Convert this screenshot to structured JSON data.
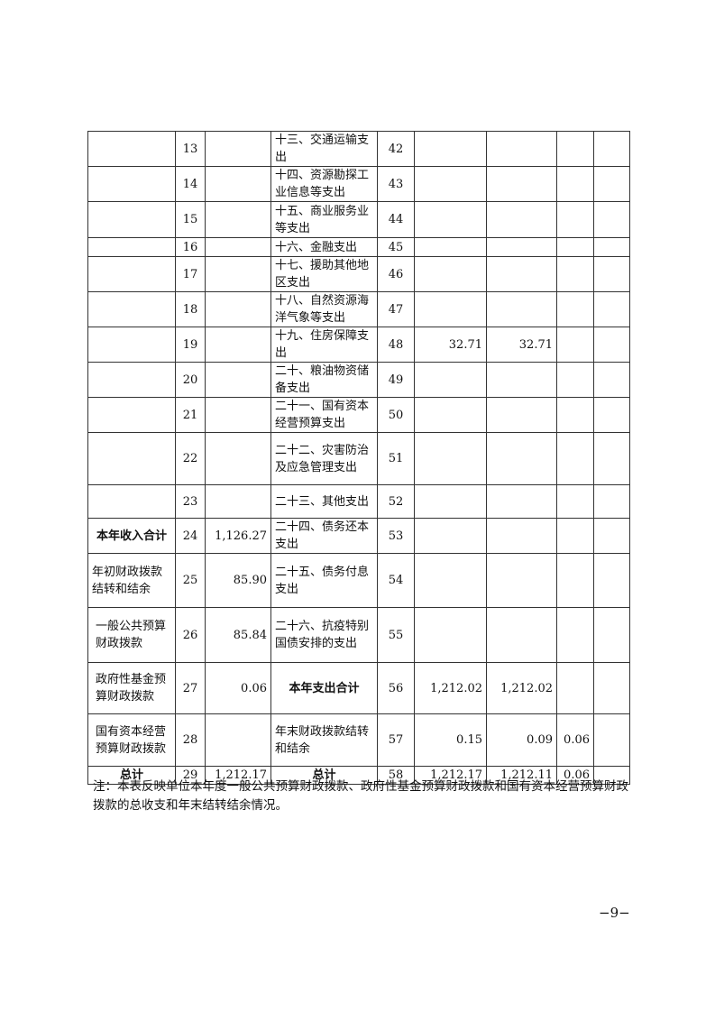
{
  "table": {
    "rows": [
      {
        "left": "",
        "ln": "13",
        "lv": "",
        "right": "十三、交通运输支出",
        "rn": "42",
        "v1": "",
        "v2": "",
        "v3": "",
        "v4": ""
      },
      {
        "left": "",
        "ln": "14",
        "lv": "",
        "right": "十四、资源勘探工业信息等支出",
        "rn": "43",
        "v1": "",
        "v2": "",
        "v3": "",
        "v4": ""
      },
      {
        "left": "",
        "ln": "15",
        "lv": "",
        "right": "十五、商业服务业等支出",
        "rn": "44",
        "v1": "",
        "v2": "",
        "v3": "",
        "v4": ""
      },
      {
        "left": "",
        "ln": "16",
        "lv": "",
        "right": "十六、金融支出",
        "rn": "45",
        "v1": "",
        "v2": "",
        "v3": "",
        "v4": ""
      },
      {
        "left": "",
        "ln": "17",
        "lv": "",
        "right": "十七、援助其他地区支出",
        "rn": "46",
        "v1": "",
        "v2": "",
        "v3": "",
        "v4": ""
      },
      {
        "left": "",
        "ln": "18",
        "lv": "",
        "right": "十八、自然资源海洋气象等支出",
        "rn": "47",
        "v1": "",
        "v2": "",
        "v3": "",
        "v4": ""
      },
      {
        "left": "",
        "ln": "19",
        "lv": "",
        "right": "十九、住房保障支出",
        "rn": "48",
        "v1": "32.71",
        "v2": "32.71",
        "v3": "",
        "v4": ""
      },
      {
        "left": "",
        "ln": "20",
        "lv": "",
        "right": "二十、粮油物资储备支出",
        "rn": "49",
        "v1": "",
        "v2": "",
        "v3": "",
        "v4": ""
      },
      {
        "left": "",
        "ln": "21",
        "lv": "",
        "right": "二十一、国有资本经营预算支出",
        "rn": "50",
        "v1": "",
        "v2": "",
        "v3": "",
        "v4": ""
      },
      {
        "left": "",
        "ln": "22",
        "lv": "",
        "right": "二十二、灾害防治及应急管理支出",
        "rn": "51",
        "v1": "",
        "v2": "",
        "v3": "",
        "v4": ""
      },
      {
        "left": "",
        "ln": "23",
        "lv": "",
        "right": "二十三、其他支出",
        "rn": "52",
        "v1": "",
        "v2": "",
        "v3": "",
        "v4": ""
      },
      {
        "left": "本年收入合计",
        "ln": "24",
        "lv": "1,126.27",
        "right": "二十四、债务还本支出",
        "rn": "53",
        "v1": "",
        "v2": "",
        "v3": "",
        "v4": ""
      },
      {
        "left": "年初财政拨款结转和结余",
        "ln": "25",
        "lv": "85.90",
        "right": "二十五、债务付息支出",
        "rn": "54",
        "v1": "",
        "v2": "",
        "v3": "",
        "v4": ""
      },
      {
        "left": "一般公共预算财政拨款",
        "ln": "26",
        "lv": "85.84",
        "right": "二十六、抗疫特别国债安排的支出",
        "rn": "55",
        "v1": "",
        "v2": "",
        "v3": "",
        "v4": ""
      },
      {
        "left": "政府性基金预算财政拨款",
        "ln": "27",
        "lv": "0.06",
        "right": "本年支出合计",
        "rn": "56",
        "v1": "1,212.02",
        "v2": "1,212.02",
        "v3": "",
        "v4": ""
      },
      {
        "left": "国有资本经营预算财政拨款",
        "ln": "28",
        "lv": "",
        "right": "年末财政拨款结转和结余",
        "rn": "57",
        "v1": "0.15",
        "v2": "0.09",
        "v3": "0.06",
        "v4": ""
      },
      {
        "left": "总计",
        "ln": "29",
        "lv": "1,212.17",
        "right": "总计",
        "rn": "58",
        "v1": "1,212.17",
        "v2": "1,212.11",
        "v3": "0.06",
        "v4": ""
      }
    ]
  },
  "note": "注：本表反映单位本年度一般公共预算财政拨款、政府性基金预算财政拨款和国有资本经营预算财政拨款的总收支和年末结转结余情况。",
  "page_number": "−9−"
}
